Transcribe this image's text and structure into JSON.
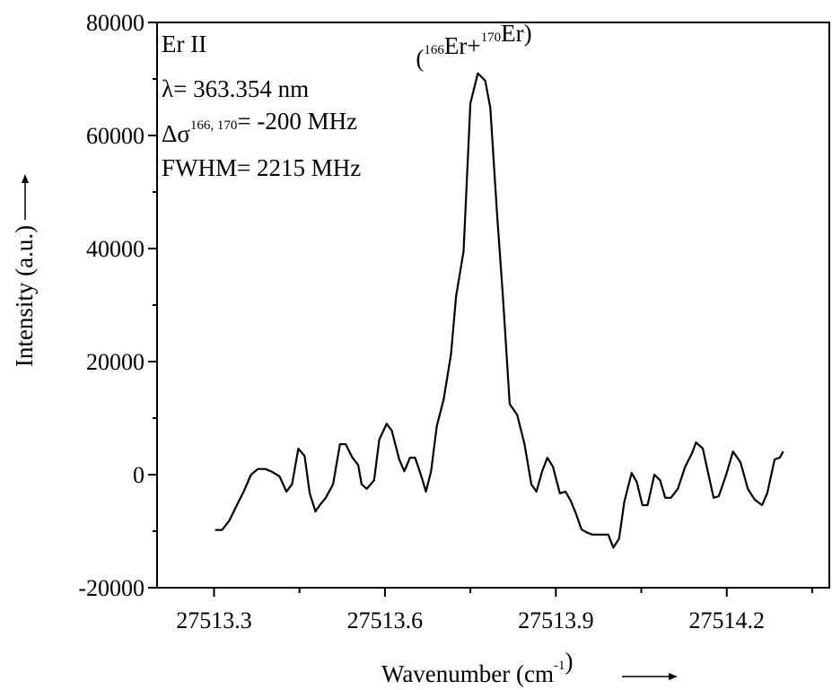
{
  "chart_data": {
    "type": "line",
    "y_label": "Intensity (a.u.)",
    "x_label": [
      "Wavenumber (cm",
      {
        "sup": "-1"
      },
      ")"
    ],
    "annotations": [
      [
        "Er II"
      ],
      [
        "λ= 363.354 nm"
      ],
      [
        "Δσ",
        {
          "sup": "166, 170"
        },
        "= -200 MHz"
      ],
      [
        "FWHM= 2215 MHz"
      ]
    ],
    "peak_label": [
      "(",
      {
        "sup": "166"
      },
      "Er+",
      {
        "sup": "170"
      },
      "Er)"
    ],
    "xlim": [
      27513.2,
      27514.38
    ],
    "ylim": [
      -20000,
      80000
    ],
    "xticks": [
      27513.3,
      27513.6,
      27513.9,
      27514.2
    ],
    "yticks": [
      -20000,
      0,
      20000,
      40000,
      60000,
      80000
    ],
    "series": [
      {
        "color": "#000000",
        "x": [
          27513.302,
          27513.314,
          27513.327,
          27513.34,
          27513.352,
          27513.365,
          27513.377,
          27513.39,
          27513.402,
          27513.415,
          27513.427,
          27513.437,
          27513.448,
          27513.459,
          27513.468,
          27513.478,
          27513.487,
          27513.496,
          27513.509,
          27513.521,
          27513.531,
          27513.543,
          27513.553,
          27513.559,
          27513.568,
          27513.581,
          27513.59,
          27513.603,
          27513.612,
          27513.625,
          27513.634,
          27513.644,
          27513.653,
          27513.663,
          27513.672,
          27513.681,
          27513.691,
          27513.703,
          27513.716,
          27513.725,
          27513.738,
          27513.75,
          27513.763,
          27513.776,
          27513.785,
          27513.797,
          27513.807,
          27513.819,
          27513.832,
          27513.845,
          27513.857,
          27513.866,
          27513.876,
          27513.885,
          27513.895,
          27513.907,
          27513.917,
          27513.926,
          27513.935,
          27513.945,
          27513.954,
          27513.964,
          27513.983,
          27513.992,
          27514.001,
          27514.011,
          27514.02,
          27514.033,
          27514.042,
          27514.052,
          27514.061,
          27514.073,
          27514.083,
          27514.092,
          27514.102,
          27514.114,
          27514.127,
          27514.139,
          27514.146,
          27514.158,
          27514.168,
          27514.177,
          27514.186,
          27514.199,
          27514.211,
          27514.224,
          27514.237,
          27514.249,
          27514.262,
          27514.271,
          27514.284,
          27514.293,
          27514.299
        ],
        "values": [
          -9800,
          -9800,
          -8100,
          -5400,
          -3000,
          0,
          1000,
          1000,
          500,
          -300,
          -3000,
          -1700,
          4600,
          3300,
          -3300,
          -6500,
          -5200,
          -4100,
          -1700,
          5400,
          5400,
          3000,
          1700,
          -1700,
          -2500,
          -1000,
          6200,
          9000,
          7800,
          2700,
          600,
          3000,
          3000,
          0,
          -3000,
          600,
          8600,
          13300,
          21300,
          31600,
          39500,
          65700,
          71000,
          69700,
          64900,
          45900,
          31600,
          12500,
          10600,
          5400,
          -1700,
          -3000,
          600,
          3000,
          1400,
          -3300,
          -3000,
          -4600,
          -6800,
          -9700,
          -10200,
          -10600,
          -10600,
          -10600,
          -12900,
          -11300,
          -4900,
          300,
          -1300,
          -5400,
          -5400,
          0,
          -1000,
          -4100,
          -4100,
          -2500,
          1400,
          3800,
          5700,
          4600,
          0,
          -4100,
          -3800,
          0,
          4100,
          2200,
          -2500,
          -4400,
          -5400,
          -3300,
          2700,
          3000,
          4100
        ]
      }
    ]
  }
}
